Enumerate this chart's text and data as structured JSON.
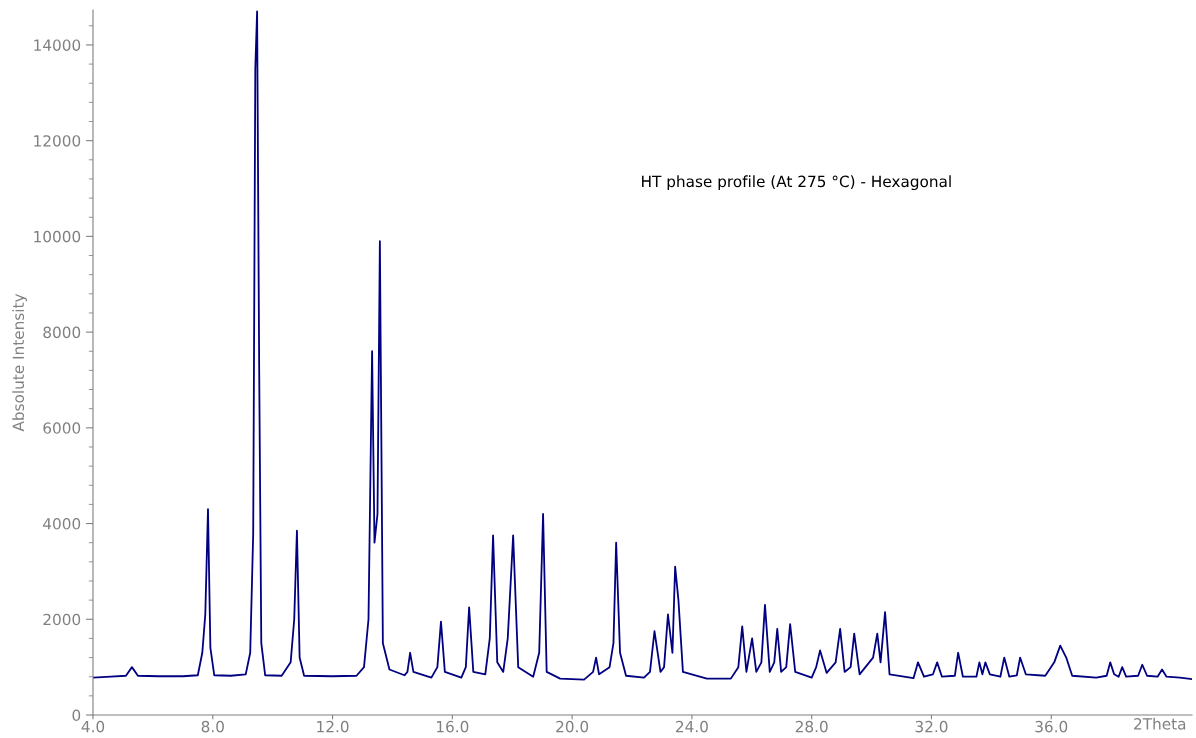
{
  "chart_data": {
    "type": "line",
    "ylabel": "Absolute Intensity",
    "annotations": [
      "HT phase profile (At 275 °C) - Hexagonal"
    ],
    "x": [
      4.0,
      4.6,
      5.1,
      5.3,
      5.5,
      6.2,
      7.0,
      7.5,
      7.65,
      7.75,
      7.84,
      7.92,
      8.05,
      8.6,
      9.1,
      9.25,
      9.35,
      9.42,
      9.48,
      9.55,
      9.62,
      9.75,
      10.3,
      10.6,
      10.72,
      10.81,
      10.9,
      11.05,
      12.0,
      12.8,
      13.05,
      13.2,
      13.32,
      13.4,
      13.5,
      13.58,
      13.68,
      13.9,
      14.4,
      14.5,
      14.59,
      14.7,
      15.3,
      15.5,
      15.62,
      15.75,
      16.3,
      16.45,
      16.56,
      16.7,
      17.1,
      17.25,
      17.36,
      17.5,
      17.7,
      17.85,
      18.03,
      18.2,
      18.7,
      18.9,
      19.03,
      19.15,
      19.6,
      20.4,
      20.7,
      20.8,
      20.9,
      21.25,
      21.38,
      21.47,
      21.6,
      21.8,
      22.4,
      22.6,
      22.75,
      22.95,
      23.07,
      23.2,
      23.35,
      23.44,
      23.55,
      23.7,
      24.5,
      25.3,
      25.55,
      25.68,
      25.82,
      26.01,
      26.15,
      26.32,
      26.44,
      26.6,
      26.75,
      26.85,
      26.98,
      27.15,
      27.28,
      27.45,
      28.0,
      28.15,
      28.28,
      28.5,
      28.8,
      28.95,
      29.1,
      29.3,
      29.42,
      29.6,
      30.05,
      30.19,
      30.3,
      30.45,
      30.6,
      31.4,
      31.55,
      31.75,
      32.05,
      32.19,
      32.35,
      32.78,
      32.89,
      33.05,
      33.5,
      33.6,
      33.7,
      33.8,
      33.95,
      34.3,
      34.43,
      34.6,
      34.85,
      34.96,
      35.15,
      35.8,
      36.1,
      36.3,
      36.5,
      36.7,
      37.5,
      37.85,
      37.97,
      38.1,
      38.25,
      38.37,
      38.5,
      38.9,
      39.04,
      39.2,
      39.55,
      39.7,
      39.85,
      40.3,
      40.7
    ],
    "series": [
      {
        "color": "#000080",
        "values": [
          780,
          800,
          820,
          1000,
          820,
          810,
          810,
          830,
          1300,
          2100,
          4300,
          1400,
          830,
          820,
          850,
          1300,
          3800,
          13500,
          14700,
          7200,
          1500,
          830,
          820,
          1100,
          2000,
          3850,
          1200,
          820,
          810,
          820,
          1000,
          2000,
          7600,
          3600,
          4200,
          9900,
          1500,
          950,
          830,
          900,
          1300,
          900,
          780,
          1000,
          1950,
          900,
          780,
          1000,
          2250,
          900,
          850,
          1600,
          3750,
          1100,
          900,
          1600,
          3750,
          1000,
          800,
          1300,
          4200,
          900,
          760,
          740,
          900,
          1200,
          850,
          1000,
          1500,
          3600,
          1300,
          820,
          780,
          900,
          1750,
          900,
          1000,
          2100,
          1300,
          3100,
          2400,
          900,
          760,
          760,
          1000,
          1850,
          900,
          1600,
          900,
          1100,
          2300,
          900,
          1100,
          1800,
          900,
          1000,
          1900,
          900,
          780,
          1000,
          1350,
          880,
          1100,
          1800,
          900,
          1000,
          1700,
          850,
          1200,
          1700,
          1100,
          2150,
          850,
          770,
          1100,
          800,
          850,
          1100,
          800,
          820,
          1300,
          800,
          800,
          1100,
          850,
          1100,
          850,
          800,
          1200,
          800,
          830,
          1200,
          850,
          820,
          1100,
          1450,
          1200,
          820,
          780,
          820,
          1100,
          850,
          800,
          1000,
          800,
          820,
          1050,
          820,
          800,
          950,
          800,
          780,
          750
        ]
      }
    ],
    "xlim": [
      4.0,
      40.7
    ],
    "ylim": [
      0,
      14730
    ],
    "xticks": [
      {
        "value": 4,
        "label": "4.0"
      },
      {
        "value": 8,
        "label": "8.0"
      },
      {
        "value": 12,
        "label": "12.0"
      },
      {
        "value": 16,
        "label": "16.0"
      },
      {
        "value": 20,
        "label": "20.0"
      },
      {
        "value": 24,
        "label": "24.0"
      },
      {
        "value": 28,
        "label": "28.0"
      },
      {
        "value": 32,
        "label": "32.0"
      },
      {
        "value": 36,
        "label": "36.0"
      }
    ],
    "xlabel": "2Theta",
    "yticks": [
      0,
      2000,
      4000,
      6000,
      8000,
      10000,
      12000,
      14000
    ],
    "grid": false,
    "marker": "none",
    "line_style": "solid"
  }
}
